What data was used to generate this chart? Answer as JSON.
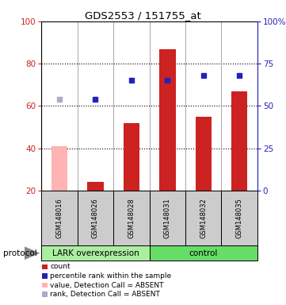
{
  "title": "GDS2553 / 151755_at",
  "samples": [
    "GSM148016",
    "GSM148026",
    "GSM148028",
    "GSM148031",
    "GSM148032",
    "GSM148035"
  ],
  "bar_values": [
    41,
    24,
    52,
    87,
    55,
    67
  ],
  "bar_colors": [
    "#ffb3b3",
    "#cc2222",
    "#cc2222",
    "#cc2222",
    "#cc2222",
    "#cc2222"
  ],
  "rank_values": [
    54,
    54,
    65,
    65,
    68,
    68
  ],
  "rank_colors": [
    "#aaaacc",
    "#2222bb",
    "#2222bb",
    "#2222bb",
    "#2222bb",
    "#2222bb"
  ],
  "ylim_left": [
    20,
    100
  ],
  "ylim_right": [
    0,
    100
  ],
  "yticks_left": [
    20,
    40,
    60,
    80,
    100
  ],
  "ytick_labels_left": [
    "20",
    "40",
    "60",
    "80",
    "100"
  ],
  "yticks_right": [
    0,
    25,
    50,
    75,
    100
  ],
  "ytick_labels_right": [
    "0",
    "25",
    "50",
    "75",
    "100%"
  ],
  "bar_bottom": 20,
  "grid_lines": [
    40,
    60,
    80
  ],
  "groups": [
    {
      "label": "LARK overexpression",
      "start": 0,
      "end": 3,
      "color": "#aaeea0"
    },
    {
      "label": "control",
      "start": 3,
      "end": 6,
      "color": "#66dd66"
    }
  ],
  "group_label": "protocol",
  "legend_items": [
    {
      "label": "count",
      "color": "#cc2222"
    },
    {
      "label": "percentile rank within the sample",
      "color": "#2222bb"
    },
    {
      "label": "value, Detection Call = ABSENT",
      "color": "#ffb3b3"
    },
    {
      "label": "rank, Detection Call = ABSENT",
      "color": "#aaaacc"
    }
  ],
  "background_color": "#ffffff",
  "label_area_color": "#cccccc",
  "bar_width": 0.45
}
